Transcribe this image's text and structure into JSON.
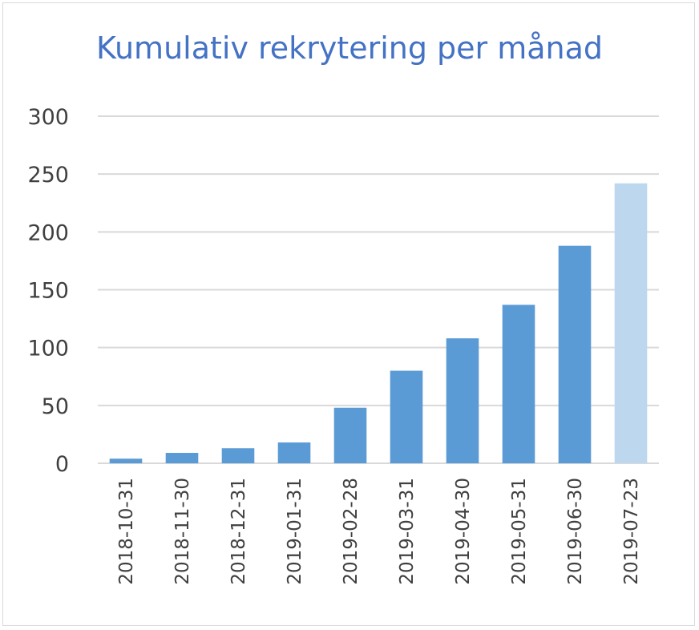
{
  "chart_data": {
    "type": "bar",
    "title": "Kumulativ rekrytering per månad",
    "xlabel": "",
    "ylabel": "",
    "categories": [
      "2018-10-31",
      "2018-11-30",
      "2018-12-31",
      "2019-01-31",
      "2019-02-28",
      "2019-03-31",
      "2019-04-30",
      "2019-05-31",
      "2019-06-30",
      "2019-07-23"
    ],
    "values": [
      4,
      9,
      13,
      18,
      48,
      80,
      108,
      137,
      188,
      242
    ],
    "ylim": [
      0,
      300
    ],
    "yticks": [
      0,
      50,
      100,
      150,
      200,
      250,
      300
    ],
    "grid": true,
    "legend": "none",
    "colors": {
      "bar": "#5b9bd5",
      "bar_highlight": "#bdd7ee",
      "title": "#4472c4",
      "grid": "#d9d9d9",
      "text": "#404040"
    },
    "highlight_index": 9
  }
}
